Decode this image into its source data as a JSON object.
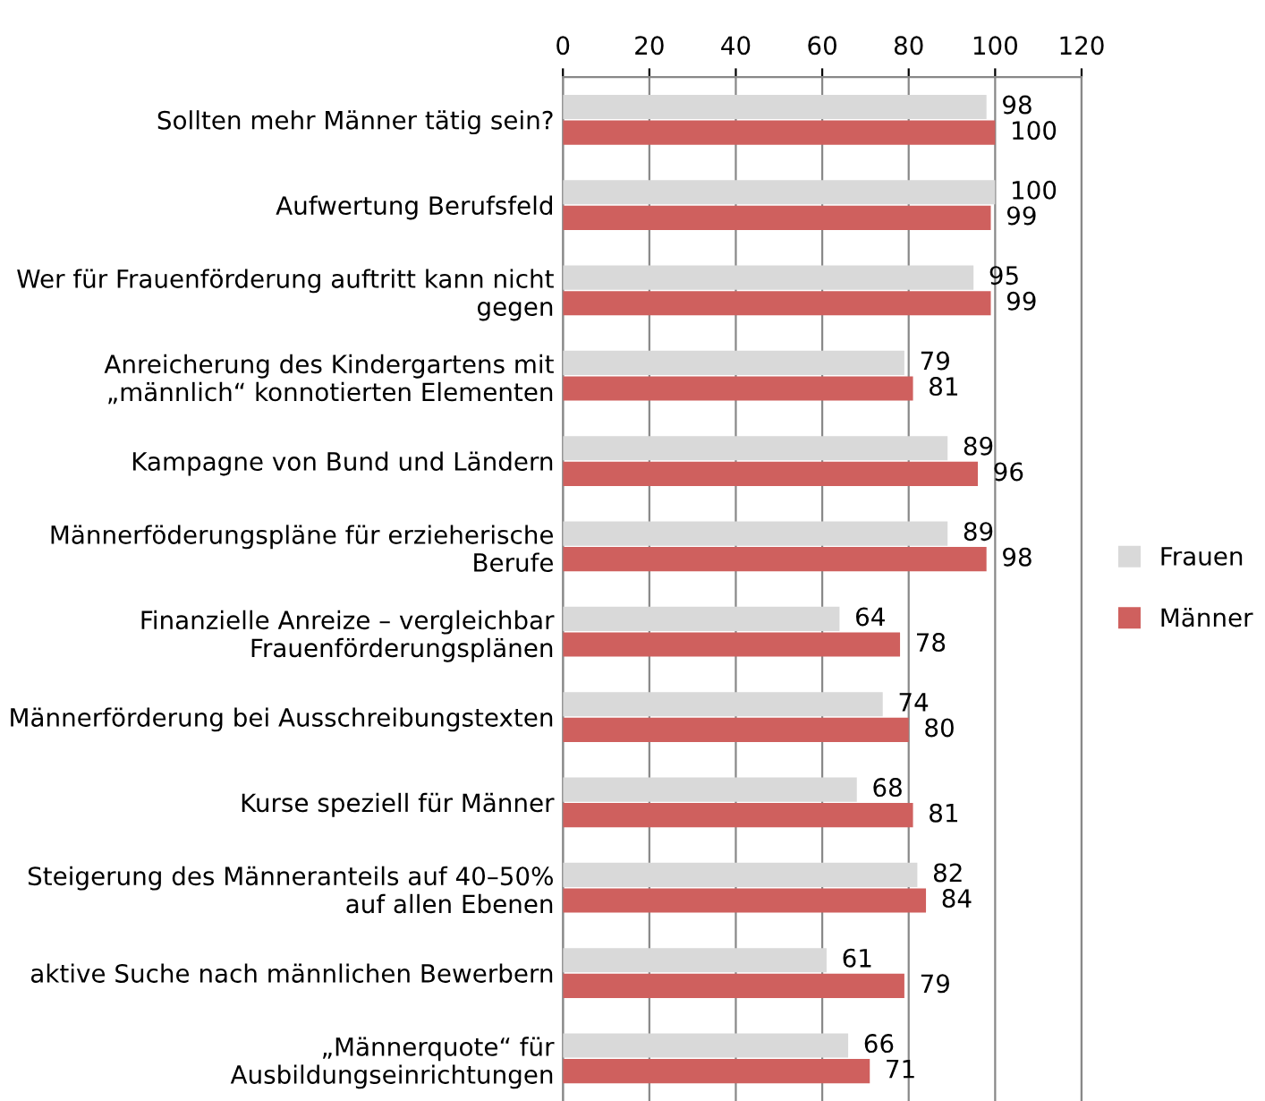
{
  "chart_data": {
    "type": "bar",
    "orientation": "horizontal",
    "categories": [
      "Sollten mehr Männer tätig sein?",
      "Aufwertung Berufsfeld",
      "Wer für Frauenförderung auftritt kann nicht\ngegen",
      "Anreicherung des Kindergartens mit\n„männlich“ konnotierten Elementen",
      "Kampagne von Bund und Ländern",
      "Männerföderungspläne für erzieherische\nBerufe",
      "Finanzielle Anreize – vergleichbar\nFrauenförderungsplänen",
      "Männerförderung bei Ausschreibungstexten",
      "Kurse speziell für Männer",
      "Steigerung des Männeranteils auf 40–50%\nauf allen Ebenen",
      "aktive Suche nach männlichen Bewerbern",
      "„Männerquote“ für\nAusbildungseinrichtungen"
    ],
    "series": [
      {
        "name": "Frauen",
        "color": "#d9d9d9",
        "values": [
          98,
          100,
          95,
          79,
          89,
          89,
          64,
          74,
          68,
          82,
          61,
          66
        ]
      },
      {
        "name": "Männer",
        "color": "#cf605e",
        "values": [
          100,
          99,
          99,
          81,
          96,
          98,
          78,
          80,
          81,
          84,
          79,
          71
        ]
      }
    ],
    "xlim": [
      0,
      120
    ],
    "xticks": [
      0,
      20,
      40,
      60,
      80,
      100,
      120
    ],
    "grid": "x",
    "legend": "right",
    "data_labels": true
  }
}
